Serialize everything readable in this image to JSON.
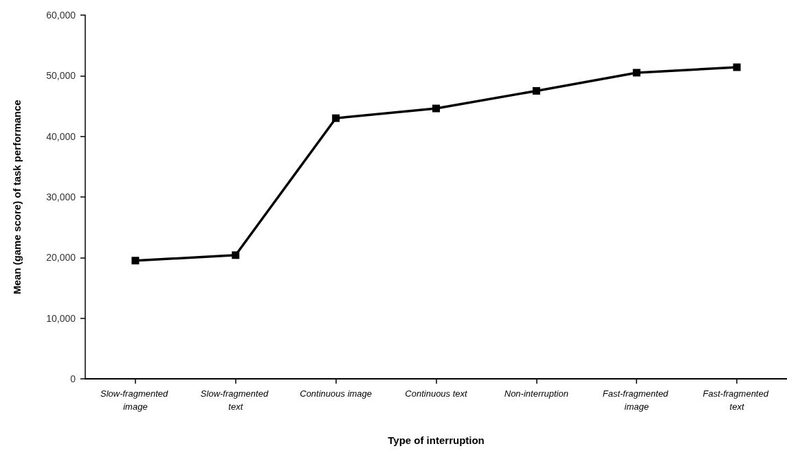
{
  "chart_data": {
    "type": "line",
    "xlabel": "Type of interruption",
    "ylabel": "Mean (game score) of task performance",
    "categories": [
      "Slow-fragmented image",
      "Slow-fragmented text",
      "Continuous image",
      "Continuous text",
      "Non-interruption",
      "Fast-fragmented image",
      "Fast-fragmented text"
    ],
    "series": [
      {
        "color": "#000000",
        "values": [
          19500,
          20400,
          43000,
          44600,
          47500,
          50500,
          51400
        ]
      }
    ],
    "ylim": [
      0,
      60000
    ],
    "yticks": [
      {
        "value": 0,
        "label": "0"
      },
      {
        "value": 10000,
        "label": "10,000"
      },
      {
        "value": 20000,
        "label": "20,000"
      },
      {
        "value": 30000,
        "label": "30,000"
      },
      {
        "value": 40000,
        "label": "40,000"
      },
      {
        "value": 50000,
        "label": "50,000"
      },
      {
        "value": 60000,
        "label": "60,000"
      }
    ],
    "grid": false,
    "marker": "square",
    "line_style": "solid"
  }
}
